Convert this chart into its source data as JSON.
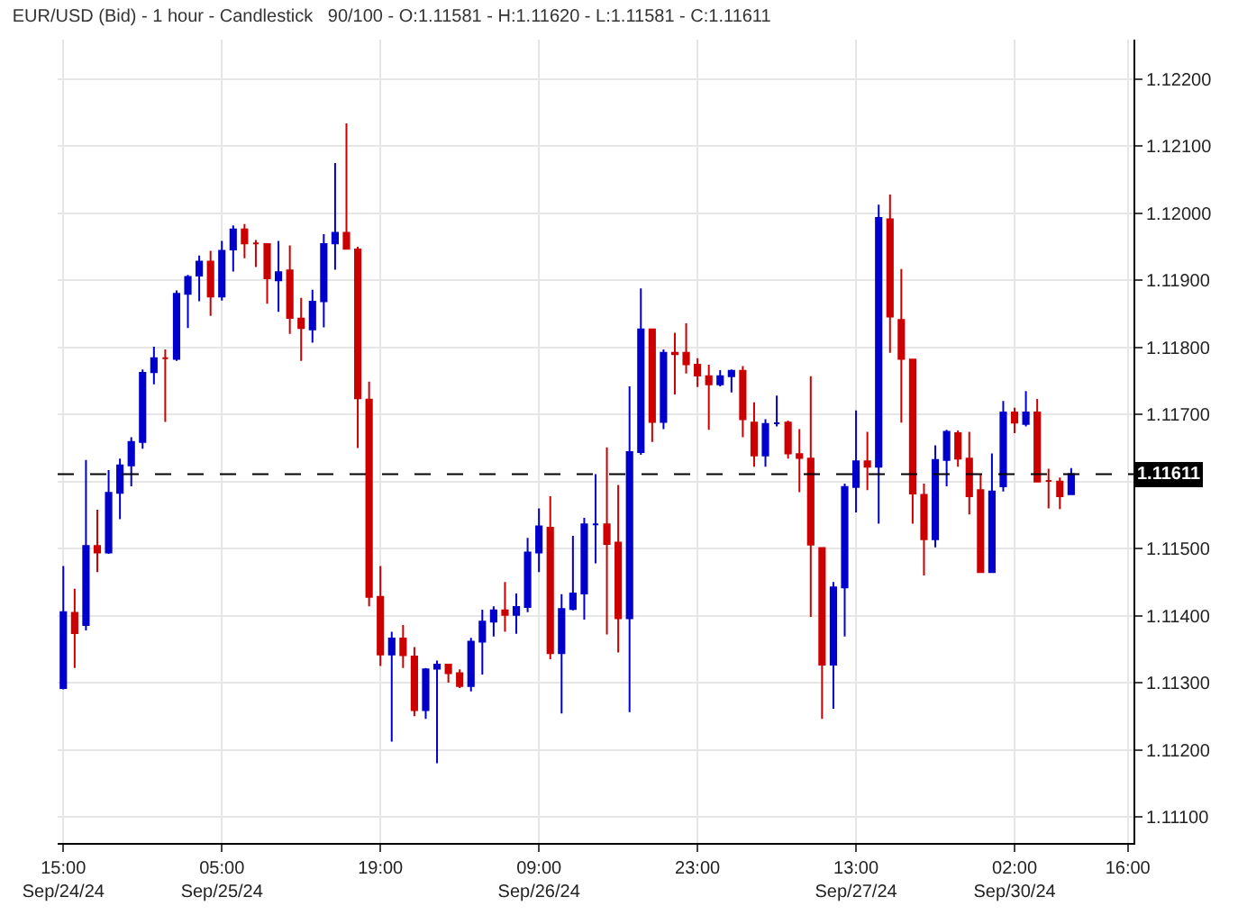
{
  "chart_data": {
    "type": "candlestick",
    "title": "EUR/USD (Bid) - 1 hour - Candlestick   90/100 - O:1.11581 - H:1.11620 - L:1.11581 - C:1.11611",
    "categories": [
      "15:00\nSep/24/24",
      null,
      null,
      null,
      null,
      null,
      null,
      null,
      null,
      null,
      null,
      null,
      null,
      null,
      "05:00\nSep/25/24",
      null,
      null,
      null,
      null,
      null,
      null,
      null,
      null,
      null,
      null,
      null,
      null,
      null,
      "19:00",
      null,
      null,
      null,
      null,
      null,
      null,
      null,
      null,
      null,
      null,
      null,
      null,
      null,
      "09:00\nSep/26/24",
      null,
      null,
      null,
      null,
      null,
      null,
      null,
      null,
      null,
      null,
      null,
      null,
      null,
      "23:00",
      null,
      null,
      null,
      null,
      null,
      null,
      null,
      null,
      null,
      null,
      null,
      null,
      null,
      "13:00\nSep/27/24",
      null,
      null,
      null,
      null,
      null,
      null,
      null,
      null,
      null,
      null,
      null,
      null,
      null,
      "02:00\nSep/30/24",
      null,
      null,
      null,
      null,
      null,
      null,
      null,
      null,
      null,
      "16:00"
    ],
    "ohlc": [
      [
        1.11292,
        1.11474,
        1.1129,
        1.11405
      ],
      [
        1.11404,
        1.1144,
        1.11322,
        1.11374
      ],
      [
        1.11386,
        1.11632,
        1.11378,
        1.11504
      ],
      [
        1.11504,
        1.11558,
        1.11465,
        1.11494
      ],
      [
        1.11494,
        1.11617,
        1.11492,
        1.11583
      ],
      [
        1.11583,
        1.11634,
        1.11544,
        1.11624
      ],
      [
        1.11624,
        1.11666,
        1.11593,
        1.11659
      ],
      [
        1.11659,
        1.11767,
        1.11649,
        1.11762
      ],
      [
        1.11763,
        1.11801,
        1.11745,
        1.11784
      ],
      [
        1.11784,
        1.11797,
        1.11689,
        1.11784
      ],
      [
        1.11783,
        1.11885,
        1.1178,
        1.1188
      ],
      [
        1.1188,
        1.11908,
        1.11829,
        1.11905
      ],
      [
        1.11907,
        1.11937,
        1.11869,
        1.11928
      ],
      [
        1.11928,
        1.11944,
        1.11847,
        1.11876
      ],
      [
        1.11876,
        1.11959,
        1.1187,
        1.11944
      ],
      [
        1.11946,
        1.11982,
        1.11913,
        1.11976
      ],
      [
        1.11976,
        1.11984,
        1.11933,
        1.11955
      ],
      [
        1.11955,
        1.1196,
        1.1192,
        1.11955
      ],
      [
        1.11954,
        1.11955,
        1.11865,
        1.11903
      ],
      [
        1.119,
        1.11959,
        1.11853,
        1.11912
      ],
      [
        1.11915,
        1.11952,
        1.1182,
        1.11844
      ],
      [
        1.11843,
        1.11874,
        1.1178,
        1.11829
      ],
      [
        1.11827,
        1.11886,
        1.11807,
        1.11868
      ],
      [
        1.11869,
        1.11969,
        1.1183,
        1.11954
      ],
      [
        1.11955,
        1.12075,
        1.11916,
        1.11971
      ],
      [
        1.11971,
        1.12134,
        1.11947,
        1.11947
      ],
      [
        1.11946,
        1.1195,
        1.1165,
        1.11724
      ],
      [
        1.11722,
        1.11749,
        1.11414,
        1.11428
      ],
      [
        1.11428,
        1.11474,
        1.11325,
        1.11342
      ],
      [
        1.11342,
        1.11376,
        1.11212,
        1.11366
      ],
      [
        1.11366,
        1.11386,
        1.11322,
        1.11341
      ],
      [
        1.11339,
        1.11353,
        1.1125,
        1.11259
      ],
      [
        1.11259,
        1.11322,
        1.11246,
        1.1132
      ],
      [
        1.11321,
        1.11333,
        1.1118,
        1.11327
      ],
      [
        1.11327,
        1.11327,
        1.113,
        1.11314
      ],
      [
        1.11314,
        1.1132,
        1.11292,
        1.11295
      ],
      [
        1.11295,
        1.11367,
        1.11287,
        1.11361
      ],
      [
        1.11361,
        1.11409,
        1.11312,
        1.11391
      ],
      [
        1.11391,
        1.11414,
        1.11369,
        1.11408
      ],
      [
        1.11408,
        1.1145,
        1.11376,
        1.11401
      ],
      [
        1.11401,
        1.11433,
        1.11373,
        1.11413
      ],
      [
        1.11413,
        1.11516,
        1.11405,
        1.11494
      ],
      [
        1.11494,
        1.1156,
        1.11465,
        1.11533
      ],
      [
        1.11531,
        1.11578,
        1.11335,
        1.11344
      ],
      [
        1.11344,
        1.11432,
        1.11254,
        1.1141
      ],
      [
        1.1141,
        1.11519,
        1.11408,
        1.11433
      ],
      [
        1.11433,
        1.11546,
        1.11394,
        1.11536
      ],
      [
        1.11536,
        1.11611,
        1.11478,
        1.11536
      ],
      [
        1.11536,
        1.11651,
        1.11372,
        1.11507
      ],
      [
        1.11509,
        1.11595,
        1.11345,
        1.11396
      ],
      [
        1.11396,
        1.11742,
        1.11256,
        1.11644
      ],
      [
        1.11644,
        1.11888,
        1.1164,
        1.11827
      ],
      [
        1.11827,
        1.11827,
        1.11659,
        1.11689
      ],
      [
        1.11689,
        1.11797,
        1.11678,
        1.11792
      ],
      [
        1.11792,
        1.11822,
        1.1173,
        1.1179
      ],
      [
        1.11792,
        1.11836,
        1.11761,
        1.11775
      ],
      [
        1.11774,
        1.11784,
        1.11741,
        1.11758
      ],
      [
        1.11757,
        1.11774,
        1.11677,
        1.11745
      ],
      [
        1.11745,
        1.11766,
        1.11742,
        1.11757
      ],
      [
        1.11757,
        1.11767,
        1.11733,
        1.11765
      ],
      [
        1.11765,
        1.11772,
        1.11666,
        1.11693
      ],
      [
        1.11688,
        1.11718,
        1.11622,
        1.11639
      ],
      [
        1.11639,
        1.11693,
        1.11622,
        1.11686
      ],
      [
        1.11687,
        1.11728,
        1.11682,
        1.11687
      ],
      [
        1.11688,
        1.11691,
        1.11634,
        1.11642
      ],
      [
        1.11641,
        1.11678,
        1.11584,
        1.11635
      ],
      [
        1.11634,
        1.11757,
        1.11398,
        1.11506
      ],
      [
        1.11501,
        1.11501,
        1.11246,
        1.11327
      ],
      [
        1.11327,
        1.1145,
        1.11261,
        1.11442
      ],
      [
        1.11442,
        1.11597,
        1.11369,
        1.11592
      ],
      [
        1.11592,
        1.11706,
        1.11554,
        1.1163
      ],
      [
        1.1163,
        1.11674,
        1.11587,
        1.11622
      ],
      [
        1.11622,
        1.12013,
        1.11537,
        1.11993
      ],
      [
        1.11991,
        1.12028,
        1.11792,
        1.11846
      ],
      [
        1.11841,
        1.11917,
        1.11688,
        1.11783
      ],
      [
        1.11782,
        1.11782,
        1.11537,
        1.11582
      ],
      [
        1.1158,
        1.11597,
        1.1146,
        1.11514
      ],
      [
        1.11514,
        1.11654,
        1.11502,
        1.11632
      ],
      [
        1.11632,
        1.11677,
        1.11593,
        1.11674
      ],
      [
        1.11672,
        1.11676,
        1.11622,
        1.11634
      ],
      [
        1.11634,
        1.11674,
        1.11551,
        1.11578
      ],
      [
        1.11587,
        1.11611,
        1.11465,
        1.11465
      ],
      [
        1.11465,
        1.11642,
        1.11465,
        1.11585
      ],
      [
        1.11593,
        1.1172,
        1.11585,
        1.11703
      ],
      [
        1.11703,
        1.1171,
        1.11672,
        1.11688
      ],
      [
        1.11686,
        1.11735,
        1.11682,
        1.11703
      ],
      [
        1.11703,
        1.11723,
        1.116,
        1.116
      ],
      [
        1.11601,
        1.11619,
        1.1156,
        1.11601
      ],
      [
        1.116,
        1.11606,
        1.11559,
        1.11578
      ],
      [
        1.11581,
        1.1162,
        1.11581,
        1.11611
      ],
      null,
      null,
      null,
      null,
      null
    ],
    "colors": [
      "#0000cc",
      "#cc0000",
      "#0000cc",
      "#cc0000",
      "#0000cc",
      "#0000cc",
      "#0000cc",
      "#0000cc",
      "#0000cc",
      "#cc0000",
      "#0000cc",
      "#0000cc",
      "#0000cc",
      "#cc0000",
      "#0000cc",
      "#0000cc",
      "#cc0000",
      "#cc0000",
      "#cc0000",
      "#0000cc",
      "#cc0000",
      "#cc0000",
      "#0000cc",
      "#0000cc",
      "#0000cc",
      "#cc0000",
      "#cc0000",
      "#cc0000",
      "#cc0000",
      "#0000cc",
      "#cc0000",
      "#cc0000",
      "#0000cc",
      "#0000cc",
      "#cc0000",
      "#cc0000",
      "#0000cc",
      "#0000cc",
      "#0000cc",
      "#cc0000",
      "#0000cc",
      "#0000cc",
      "#0000cc",
      "#cc0000",
      "#0000cc",
      "#0000cc",
      "#0000cc",
      "#0000cc",
      "#cc0000",
      "#cc0000",
      "#0000cc",
      "#0000cc",
      "#cc0000",
      "#0000cc",
      "#cc0000",
      "#cc0000",
      "#cc0000",
      "#cc0000",
      "#0000cc",
      "#0000cc",
      "#cc0000",
      "#cc0000",
      "#0000cc",
      "#0000cc",
      "#cc0000",
      "#cc0000",
      "#cc0000",
      "#cc0000",
      "#0000cc",
      "#0000cc",
      "#0000cc",
      "#cc0000",
      "#0000cc",
      "#cc0000",
      "#cc0000",
      "#cc0000",
      "#cc0000",
      "#0000cc",
      "#0000cc",
      "#cc0000",
      "#cc0000",
      "#cc0000",
      "#0000cc",
      "#0000cc",
      "#cc0000",
      "#0000cc",
      "#cc0000",
      "#cc0000",
      "#cc0000",
      "#0000cc",
      null,
      null,
      null,
      null,
      null
    ],
    "ylim": [
      1.11061,
      1.12259
    ],
    "yticks": [
      {
        "value": 1.111,
        "label": "1.11100"
      },
      {
        "value": 1.112,
        "label": "1.11200"
      },
      {
        "value": 1.113,
        "label": "1.11300"
      },
      {
        "value": 1.114,
        "label": "1.11400"
      },
      {
        "value": 1.115,
        "label": "1.11500"
      },
      {
        "value": 1.116,
        "label": null
      },
      {
        "value": 1.117,
        "label": "1.11700"
      },
      {
        "value": 1.118,
        "label": "1.11800"
      },
      {
        "value": 1.119,
        "label": "1.11900"
      },
      {
        "value": 1.12,
        "label": "1.12000"
      },
      {
        "value": 1.121,
        "label": "1.12100"
      },
      {
        "value": 1.122,
        "label": "1.12200"
      }
    ],
    "ref_lines": [
      {
        "axis": "y",
        "value": 1.11611,
        "label": "1.11611",
        "color": "#000000",
        "line_style": "dashed"
      }
    ],
    "grid": true
  }
}
